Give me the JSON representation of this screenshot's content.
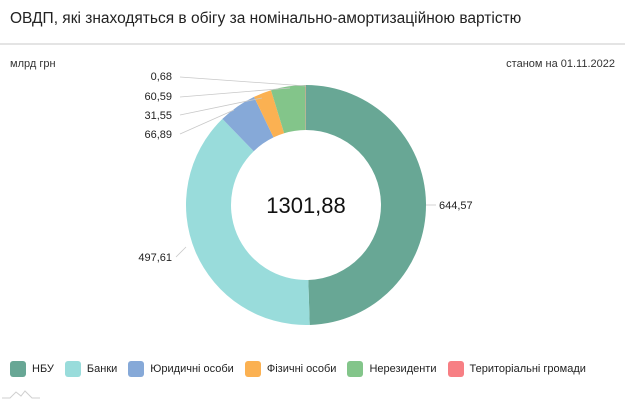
{
  "header": {
    "title": "ОВДП, які знаходяться в обігу за номінально-амортизаційною вартістю",
    "unit": "млрд грн",
    "as_of": "станом на 01.11.2022"
  },
  "center_total": "1301,88",
  "labels": {
    "nbu": "644,57",
    "banks": "497,61",
    "legal": "66,89",
    "individuals": "31,55",
    "nonresidents": "60,59",
    "communities": "0,68"
  },
  "legend": [
    {
      "label": "НБУ",
      "color": "#68a795"
    },
    {
      "label": "Банки",
      "color": "#99dcdb"
    },
    {
      "label": "Юридичні особи",
      "color": "#86a9d8"
    },
    {
      "label": "Фізичні особи",
      "color": "#fbb152"
    },
    {
      "label": "Нерезиденти",
      "color": "#83c58a"
    },
    {
      "label": "Територіальні громади",
      "color": "#f77f84"
    }
  ],
  "chart_data": {
    "type": "pie",
    "subtype": "donut",
    "title": "ОВДП, які знаходяться в обігу за номінально-амортизаційною вартістю",
    "unit": "млрд грн",
    "date": "01.11.2022",
    "total": 1301.88,
    "categories": [
      "НБУ",
      "Банки",
      "Юридичні особи",
      "Фізичні особи",
      "Нерезиденти",
      "Територіальні громади"
    ],
    "values": [
      644.57,
      497.61,
      66.89,
      31.55,
      60.59,
      0.68
    ],
    "colors": [
      "#68a795",
      "#99dcdb",
      "#86a9d8",
      "#fbb152",
      "#83c58a",
      "#f77f84"
    ],
    "legend_position": "bottom"
  }
}
